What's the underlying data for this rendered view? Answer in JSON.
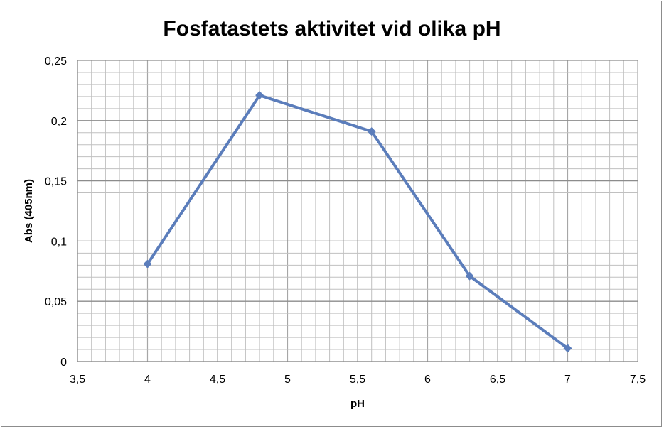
{
  "chart_data": {
    "type": "line",
    "title": "Fosfatastets aktivitet vid olika pH",
    "xlabel": "pH",
    "ylabel": "Abs (405nm)",
    "xlim": [
      3.5,
      7.5
    ],
    "ylim": [
      0,
      0.25
    ],
    "x_ticks": [
      "3,5",
      "4",
      "4,5",
      "5",
      "5,5",
      "6",
      "6,5",
      "7",
      "7,5"
    ],
    "y_ticks": [
      "0",
      "0,05",
      "0,1",
      "0,15",
      "0,2",
      "0,25"
    ],
    "grid": true,
    "legend": "none",
    "series": [
      {
        "x": [
          4,
          4.8,
          5.6,
          6.3,
          7
        ],
        "y": [
          0.081,
          0.221,
          0.191,
          0.071,
          0.011
        ],
        "color": "#5b7dbb",
        "marker": "diamond"
      }
    ]
  }
}
